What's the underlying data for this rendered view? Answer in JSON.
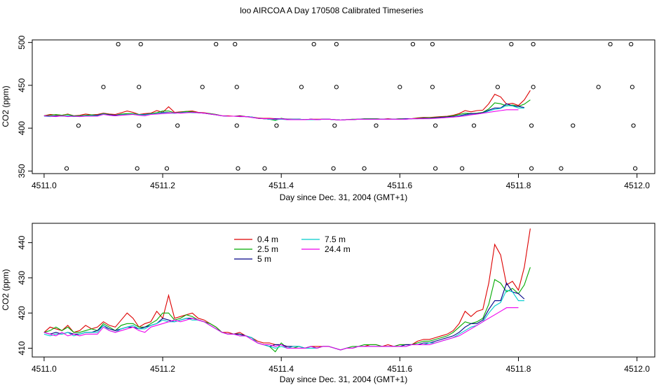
{
  "figure": {
    "title": "loo AIRCOA A  Day 170508  Calibrated Timeseries"
  },
  "chart_data": [
    {
      "type": "line",
      "xlabel": "Day since Dec. 31, 2004 (GMT+1)",
      "ylabel": "CO2 (ppm)",
      "xlim": [
        4510.98,
        4512.03
      ],
      "ylim": [
        347,
        503
      ],
      "xticks": [
        "4511.0",
        "4511.2",
        "4511.4",
        "4511.6",
        "4511.8",
        "4512.0"
      ],
      "yticks": [
        "350",
        "400",
        "450",
        "500"
      ],
      "x_start": 4511.0,
      "x_step": 0.01,
      "series_from_panel": 1,
      "flag_points": [
        {
          "x": 4511.125,
          "y": 498
        },
        {
          "x": 4511.163,
          "y": 498
        },
        {
          "x": 4511.29,
          "y": 498
        },
        {
          "x": 4511.322,
          "y": 498
        },
        {
          "x": 4511.455,
          "y": 498
        },
        {
          "x": 4511.493,
          "y": 498
        },
        {
          "x": 4511.622,
          "y": 498
        },
        {
          "x": 4511.655,
          "y": 498
        },
        {
          "x": 4511.788,
          "y": 498
        },
        {
          "x": 4511.825,
          "y": 498
        },
        {
          "x": 4511.955,
          "y": 498
        },
        {
          "x": 4511.99,
          "y": 498
        },
        {
          "x": 4511.1,
          "y": 448
        },
        {
          "x": 4511.16,
          "y": 448
        },
        {
          "x": 4511.267,
          "y": 448
        },
        {
          "x": 4511.325,
          "y": 448
        },
        {
          "x": 4511.434,
          "y": 448
        },
        {
          "x": 4511.493,
          "y": 448
        },
        {
          "x": 4511.6,
          "y": 448
        },
        {
          "x": 4511.655,
          "y": 448
        },
        {
          "x": 4511.765,
          "y": 448
        },
        {
          "x": 4511.825,
          "y": 448
        },
        {
          "x": 4511.935,
          "y": 448
        },
        {
          "x": 4511.992,
          "y": 448
        },
        {
          "x": 4511.058,
          "y": 403
        },
        {
          "x": 4511.16,
          "y": 403
        },
        {
          "x": 4511.225,
          "y": 403
        },
        {
          "x": 4511.325,
          "y": 403
        },
        {
          "x": 4511.392,
          "y": 403
        },
        {
          "x": 4511.49,
          "y": 403
        },
        {
          "x": 4511.56,
          "y": 403
        },
        {
          "x": 4511.66,
          "y": 403
        },
        {
          "x": 4511.725,
          "y": 403
        },
        {
          "x": 4511.822,
          "y": 403
        },
        {
          "x": 4511.892,
          "y": 403
        },
        {
          "x": 4511.994,
          "y": 403
        },
        {
          "x": 4511.038,
          "y": 353
        },
        {
          "x": 4511.157,
          "y": 353
        },
        {
          "x": 4511.207,
          "y": 353
        },
        {
          "x": 4511.327,
          "y": 353
        },
        {
          "x": 4511.372,
          "y": 353
        },
        {
          "x": 4511.488,
          "y": 353
        },
        {
          "x": 4511.54,
          "y": 353
        },
        {
          "x": 4511.66,
          "y": 353
        },
        {
          "x": 4511.705,
          "y": 353
        },
        {
          "x": 4511.822,
          "y": 353
        },
        {
          "x": 4511.872,
          "y": 353
        },
        {
          "x": 4511.997,
          "y": 353
        }
      ]
    },
    {
      "type": "line",
      "xlabel": "Day since Dec. 31, 2004 (GMT+1)",
      "ylabel": "CO2 (ppm)",
      "xlim": [
        4510.98,
        4512.03
      ],
      "ylim": [
        407.5,
        445.5
      ],
      "xticks": [
        "4511.0",
        "4511.2",
        "4511.4",
        "4511.6",
        "4511.8",
        "4512.0"
      ],
      "yticks": [
        "410",
        "420",
        "430",
        "440"
      ],
      "x_start": 4511.0,
      "x_step": 0.01,
      "legend": "top-left",
      "series": [
        {
          "name": "0.4 m",
          "color": "#dd0000",
          "values": [
            414.5,
            416,
            415.5,
            415,
            416.5,
            414.5,
            415,
            416.5,
            415.5,
            416,
            417.5,
            416.5,
            416,
            418,
            420,
            418.5,
            416,
            417,
            417.5,
            420.5,
            418.5,
            425,
            418.5,
            419,
            419.5,
            420,
            418.5,
            418,
            417,
            416,
            414.5,
            414.5,
            414,
            414.5,
            413.5,
            413,
            412,
            411.5,
            411.5,
            411,
            411,
            410.5,
            410.5,
            410.5,
            410,
            410.5,
            410.5,
            410.5,
            410.5,
            410,
            409.5,
            410,
            410,
            410.5,
            410.5,
            411,
            411,
            410.5,
            411,
            410.5,
            411,
            411,
            411,
            412,
            412.5,
            412.5,
            413,
            413.5,
            414,
            415,
            417,
            420.5,
            419,
            420.5,
            421,
            428.5,
            439.5,
            436.5,
            428,
            429,
            426.5,
            433,
            444
          ]
        },
        {
          "name": "2.5 m",
          "color": "#00aa00",
          "values": [
            414.5,
            415,
            416,
            415,
            416,
            414.5,
            414.5,
            415,
            415.5,
            415,
            417,
            416,
            415,
            416.5,
            417,
            417,
            416,
            416,
            417,
            418,
            420,
            420,
            418,
            418.5,
            419.5,
            419,
            418,
            417.5,
            417,
            416,
            414.5,
            414,
            414,
            414,
            413.5,
            413,
            411.5,
            411,
            410.5,
            409,
            411.5,
            410,
            410,
            410.5,
            410,
            410.5,
            410,
            410.5,
            410.5,
            410,
            409.5,
            410,
            410.5,
            410.5,
            411,
            411,
            411,
            410.5,
            410.5,
            410.5,
            411,
            411,
            411,
            411.5,
            412,
            412,
            412.5,
            413,
            413.5,
            414.5,
            416,
            417.5,
            417,
            417.5,
            418.5,
            422.5,
            429.5,
            428.5,
            426,
            427,
            425.5,
            428,
            433
          ]
        },
        {
          "name": "5 m",
          "color": "#000088",
          "values": [
            414.5,
            414,
            414.5,
            414,
            414.5,
            414,
            414,
            414.5,
            414.5,
            415,
            416.5,
            415.5,
            415,
            415.5,
            416,
            416,
            415.5,
            416,
            416.5,
            417,
            418.5,
            418,
            417.5,
            418,
            418.5,
            418.5,
            418,
            417.5,
            416.5,
            415.5,
            414.5,
            414,
            414,
            414,
            413.5,
            413,
            411.5,
            411,
            410.5,
            411,
            411,
            410.5,
            410.5,
            410.5,
            410,
            410.5,
            410,
            410.5,
            410.5,
            410,
            409.5,
            410,
            410,
            410.5,
            410.5,
            410.5,
            410.5,
            410.5,
            410.5,
            410.5,
            410.5,
            411,
            411,
            411,
            411.5,
            411.5,
            412,
            412.5,
            413,
            413.5,
            414.5,
            416,
            417,
            417,
            418,
            421,
            423.5,
            423.5,
            428.5,
            426,
            425.5,
            424
          ]
        },
        {
          "name": "7.5 m",
          "color": "#00cccc",
          "values": [
            414,
            413.5,
            414,
            414,
            414.5,
            413.5,
            414,
            414.5,
            414.5,
            414.5,
            416.5,
            415,
            414.5,
            415.5,
            416,
            416.5,
            415.5,
            415.5,
            416.5,
            417,
            418,
            417.5,
            417.5,
            418,
            418.5,
            418,
            418,
            417.5,
            416.5,
            415.5,
            414.5,
            414,
            414,
            413.5,
            413.5,
            413,
            411.5,
            411,
            410.5,
            410,
            410.5,
            410,
            410.5,
            410.5,
            410,
            410,
            410,
            410.5,
            410.5,
            410,
            409.5,
            410,
            410,
            410.5,
            410.5,
            410.5,
            410.5,
            410.5,
            410.5,
            410.5,
            410.5,
            410.5,
            411,
            411,
            411,
            411.5,
            411.5,
            412,
            412.5,
            413,
            414,
            415,
            416,
            416.5,
            417.5,
            420,
            422,
            423,
            426.5,
            426,
            423.5,
            423.5
          ]
        },
        {
          "name": "24.4 m",
          "color": "#ee00ee",
          "values": [
            414.5,
            414,
            413.5,
            414.5,
            413.5,
            414,
            413.5,
            414,
            414,
            414,
            416,
            415,
            414.5,
            415,
            415.5,
            416,
            415,
            414.5,
            416,
            416.5,
            417,
            417.5,
            418,
            417.5,
            418,
            418.5,
            418,
            417.5,
            416.5,
            415.5,
            414.5,
            414,
            414,
            413.5,
            413.5,
            412.5,
            411.5,
            411,
            411,
            410.5,
            411,
            410,
            410,
            410,
            410,
            410.5,
            410,
            410.5,
            410.5,
            410,
            409.5,
            410,
            410,
            410.5,
            410.5,
            410.5,
            410.5,
            410.5,
            410.5,
            410.5,
            410.5,
            410.5,
            411,
            411,
            411,
            411,
            411.5,
            412,
            412.5,
            413,
            413.5,
            414.5,
            415.5,
            416.5,
            417.5,
            418.5,
            419.5,
            420.5,
            421.5,
            421.5,
            421.5
          ]
        }
      ]
    }
  ]
}
